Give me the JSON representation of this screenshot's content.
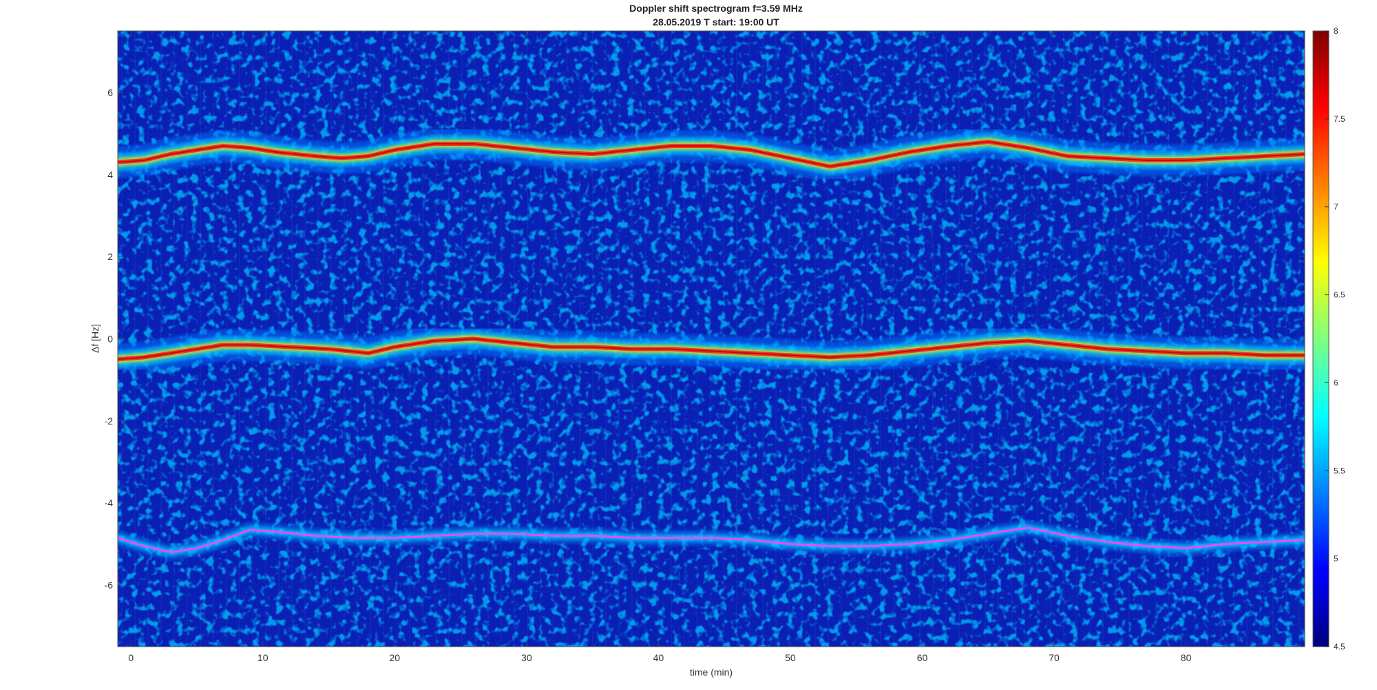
{
  "chart_data": {
    "type": "heatmap",
    "title": "Doppler shift spectrogram f=3.59 MHz",
    "subtitle": "28.05.2019   T start: 19:00 UT",
    "xlabel": "time (min)",
    "ylabel": "Δf [Hz]",
    "xlim": [
      -1,
      89
    ],
    "ylim": [
      -7.5,
      7.5
    ],
    "x_ticks": [
      0,
      10,
      20,
      30,
      40,
      50,
      60,
      70,
      80
    ],
    "y_ticks": [
      -6,
      -4,
      -2,
      0,
      2,
      4,
      6
    ],
    "colorbar": {
      "colormap": "jet",
      "range": [
        4.5,
        8
      ],
      "ticks": [
        4.5,
        5,
        5.5,
        6,
        6.5,
        7,
        7.5,
        8
      ]
    },
    "series": [
      {
        "x": [
          -1,
          1,
          3,
          5,
          7,
          9,
          11,
          14,
          16,
          18,
          20,
          23,
          26,
          29,
          32,
          35,
          38,
          41,
          44,
          47,
          50,
          53,
          56,
          59,
          62,
          65,
          68,
          71,
          74,
          77,
          80,
          83,
          86,
          89
        ],
        "y": [
          4.3,
          4.35,
          4.5,
          4.6,
          4.7,
          4.65,
          4.55,
          4.45,
          4.4,
          4.45,
          4.6,
          4.75,
          4.75,
          4.65,
          4.55,
          4.5,
          4.6,
          4.7,
          4.7,
          4.6,
          4.4,
          4.2,
          4.35,
          4.55,
          4.7,
          4.8,
          4.65,
          4.45,
          4.4,
          4.35,
          4.35,
          4.4,
          4.45,
          4.5
        ]
      },
      {
        "x": [
          -1,
          1,
          3,
          5,
          7,
          9,
          12,
          15,
          18,
          20,
          23,
          26,
          29,
          32,
          35,
          38,
          41,
          44,
          47,
          50,
          53,
          56,
          59,
          62,
          65,
          68,
          71,
          74,
          77,
          80,
          83,
          86,
          89
        ],
        "y": [
          -0.5,
          -0.45,
          -0.35,
          -0.25,
          -0.15,
          -0.15,
          -0.2,
          -0.25,
          -0.35,
          -0.2,
          -0.05,
          0.0,
          -0.1,
          -0.2,
          -0.2,
          -0.25,
          -0.25,
          -0.3,
          -0.35,
          -0.4,
          -0.45,
          -0.4,
          -0.3,
          -0.2,
          -0.1,
          -0.05,
          -0.15,
          -0.25,
          -0.3,
          -0.35,
          -0.35,
          -0.4,
          -0.4
        ]
      },
      {
        "x": [
          -1,
          1,
          3,
          5,
          7,
          9,
          11,
          14,
          17,
          20,
          23,
          26,
          29,
          32,
          35,
          38,
          41,
          44,
          47,
          50,
          53,
          56,
          59,
          62,
          65,
          68,
          71,
          74,
          77,
          80,
          83,
          86,
          89
        ],
        "y": [
          -4.85,
          -5.05,
          -5.2,
          -5.1,
          -4.9,
          -4.65,
          -4.7,
          -4.8,
          -4.85,
          -4.85,
          -4.8,
          -4.75,
          -4.75,
          -4.8,
          -4.8,
          -4.85,
          -4.85,
          -4.85,
          -4.9,
          -5.0,
          -5.05,
          -5.05,
          -5.0,
          -4.9,
          -4.75,
          -4.6,
          -4.8,
          -4.95,
          -5.05,
          -5.1,
          -5.0,
          -4.95,
          -4.9
        ]
      }
    ]
  }
}
